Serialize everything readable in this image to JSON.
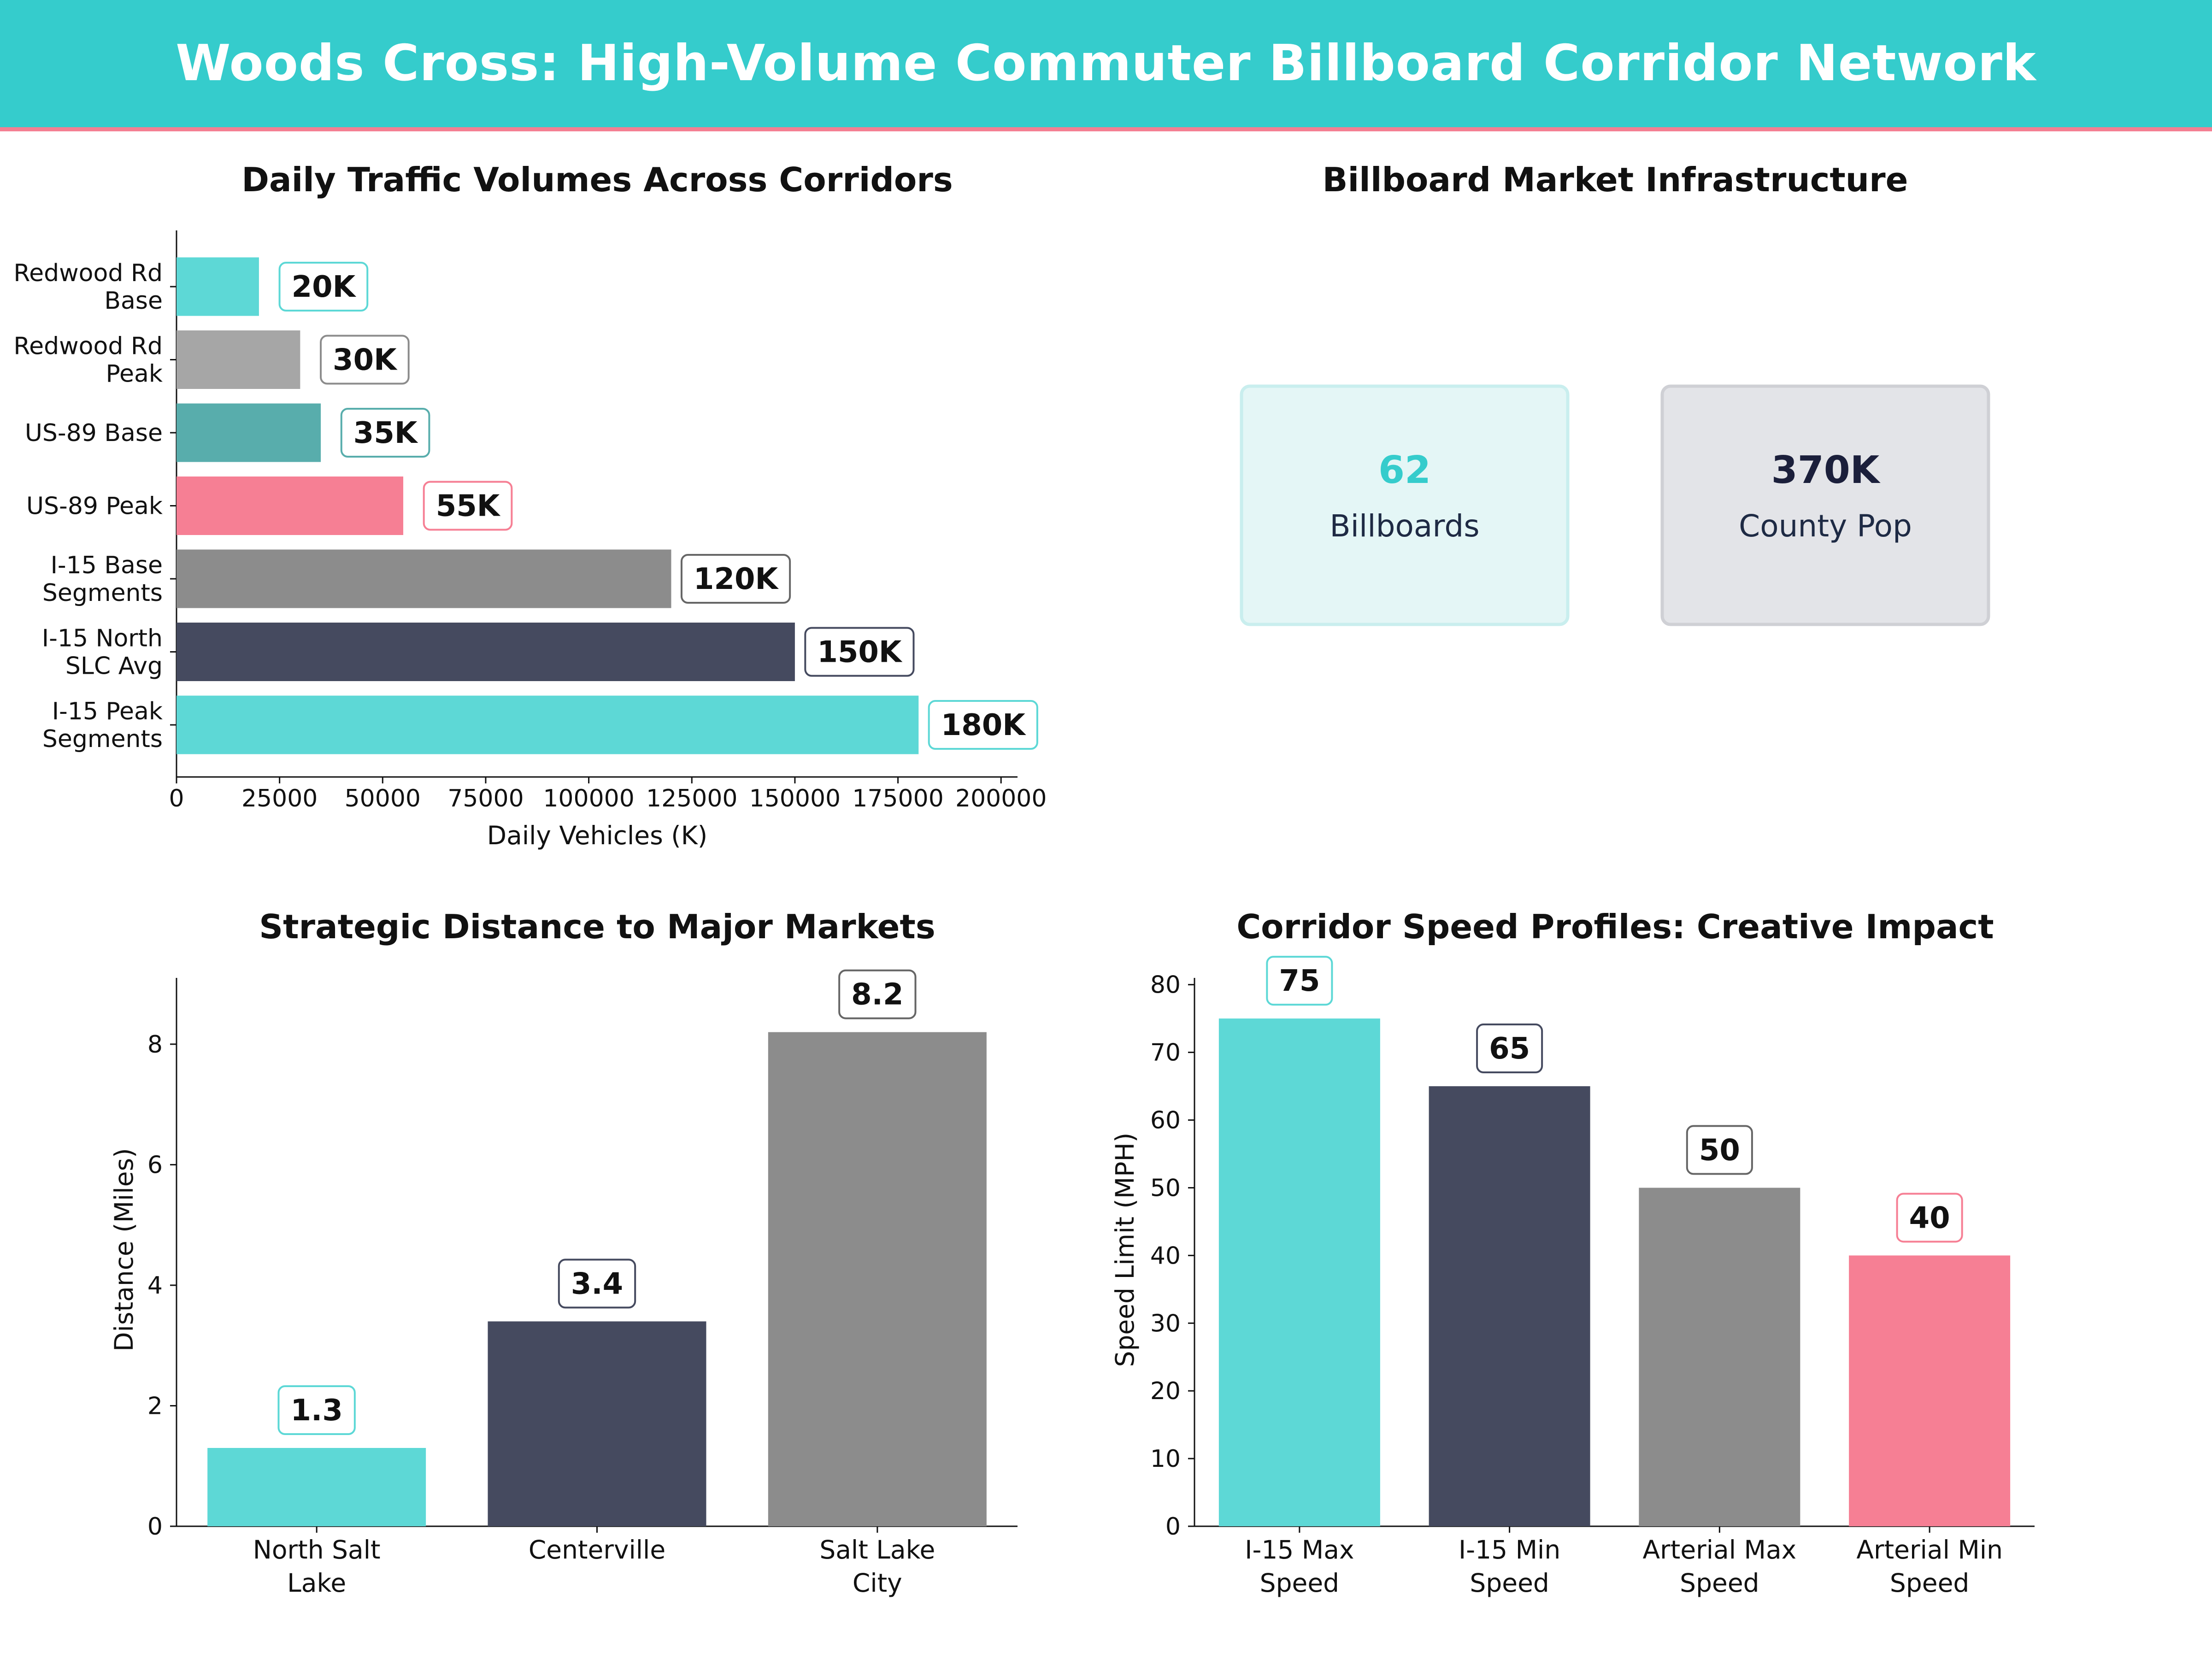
{
  "header": {
    "title": "Woods Cross: High-Volume Commuter Billboard Corridor Network"
  },
  "colors": {
    "teal": "#5dd8d6",
    "gray": "#8c8c8c",
    "light_gray": "#a6a6a6",
    "dark_teal": "#58adac",
    "pink": "#f67f94",
    "navy": "#454a5f"
  },
  "chart_data": [
    {
      "id": "traffic",
      "type": "bar",
      "orientation": "horizontal",
      "title": "Daily Traffic Volumes Across Corridors",
      "xlabel": "Daily Vehicles (K)",
      "ylabel": "",
      "categories": [
        [
          "Redwood Rd",
          "Base"
        ],
        [
          "Redwood Rd",
          "Peak"
        ],
        [
          "US-89 Base"
        ],
        [
          "US-89 Peak"
        ],
        [
          "I-15 Base",
          "Segments"
        ],
        [
          "I-15 North",
          "SLC Avg"
        ],
        [
          "I-15 Peak",
          "Segments"
        ]
      ],
      "values": [
        20000,
        30000,
        35000,
        55000,
        120000,
        150000,
        180000
      ],
      "value_labels": [
        "20K",
        "30K",
        "35K",
        "55K",
        "120K",
        "150K",
        "180K"
      ],
      "bar_colors": [
        "#5dd8d6",
        "#a6a6a6",
        "#58adac",
        "#f67f94",
        "#8c8c8c",
        "#454a5f",
        "#5dd8d6"
      ],
      "label_border_colors": [
        "#5dd8d6",
        "#8c8c8c",
        "#58adac",
        "#f67f94",
        "#666666",
        "#454a5f",
        "#5dd8d6"
      ],
      "xlim": [
        0,
        204000
      ],
      "ticks": [
        0,
        25000,
        50000,
        75000,
        100000,
        125000,
        150000,
        175000,
        200000
      ],
      "tick_labels": [
        "0",
        "25000",
        "50000",
        "75000",
        "100000",
        "125000",
        "150000",
        "175000",
        "200000"
      ],
      "grid": false
    },
    {
      "id": "infrastructure",
      "type": "table",
      "title": "Billboard Market Infrastructure",
      "cards": [
        {
          "value": "62",
          "label": "Billboards",
          "value_color": "#35cccc",
          "label_color": "#1e2a44",
          "bg": "#e4f6f6",
          "border": "#c9eeee"
        },
        {
          "value": "370K",
          "label": "County Pop",
          "value_color": "#1b1f3b",
          "label_color": "#1e2a44",
          "bg": "#e3e4e8",
          "border": "#cfd0d5"
        }
      ]
    },
    {
      "id": "distance",
      "type": "bar",
      "title": "Strategic Distance to Major Markets",
      "xlabel": "",
      "ylabel": "Distance (Miles)",
      "categories": [
        [
          "North Salt",
          "Lake"
        ],
        [
          "Centerville"
        ],
        [
          "Salt Lake",
          "City"
        ]
      ],
      "values": [
        1.3,
        3.4,
        8.2
      ],
      "value_labels": [
        "1.3",
        "3.4",
        "8.2"
      ],
      "bar_colors": [
        "#5dd8d6",
        "#454a5f",
        "#8c8c8c"
      ],
      "label_border_colors": [
        "#5dd8d6",
        "#454a5f",
        "#666666"
      ],
      "ylim": [
        0,
        9.1
      ],
      "ticks": [
        0,
        2,
        4,
        6,
        8
      ],
      "tick_labels": [
        "0",
        "2",
        "4",
        "6",
        "8"
      ],
      "grid": false
    },
    {
      "id": "speed",
      "type": "bar",
      "title": "Corridor Speed Profiles: Creative Impact",
      "xlabel": "",
      "ylabel": "Speed Limit (MPH)",
      "categories": [
        [
          "I-15 Max",
          "Speed"
        ],
        [
          "I-15 Min",
          "Speed"
        ],
        [
          "Arterial Max",
          "Speed"
        ],
        [
          "Arterial Min",
          "Speed"
        ]
      ],
      "values": [
        75,
        65,
        50,
        40
      ],
      "value_labels": [
        "75",
        "65",
        "50",
        "40"
      ],
      "bar_colors": [
        "#5dd8d6",
        "#454a5f",
        "#8c8c8c",
        "#f67f94"
      ],
      "label_border_colors": [
        "#5dd8d6",
        "#454a5f",
        "#666666",
        "#f67f94"
      ],
      "ylim": [
        0,
        81
      ],
      "ticks": [
        0,
        10,
        20,
        30,
        40,
        50,
        60,
        70,
        80
      ],
      "tick_labels": [
        "0",
        "10",
        "20",
        "30",
        "40",
        "50",
        "60",
        "70",
        "80"
      ],
      "grid": false
    }
  ]
}
